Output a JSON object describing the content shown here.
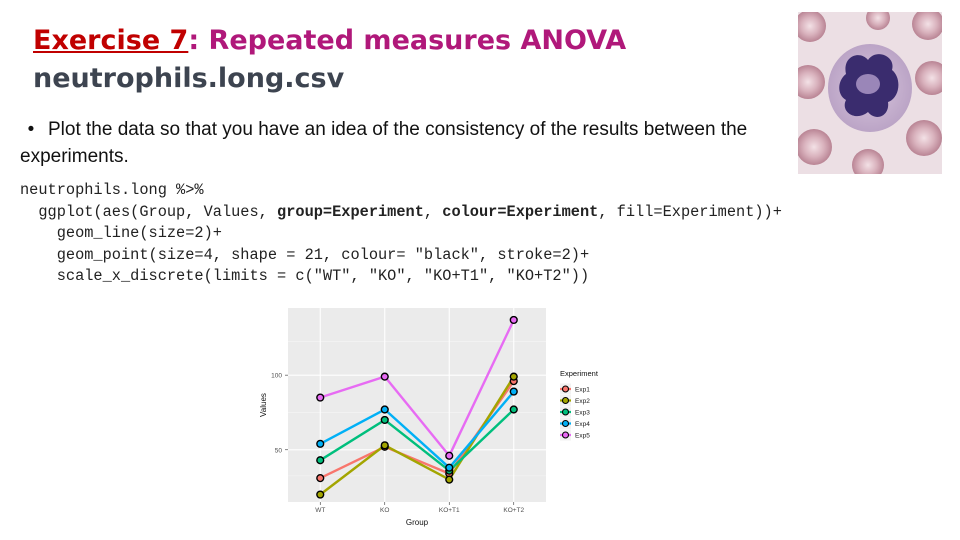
{
  "slide": {
    "title_exercise": "Exercise 7",
    "title_rest": ": Repeated measures ANOVA",
    "subtitle": "neutrophils.long.csv",
    "bullet_mark": "•",
    "bullet_text": "Plot the data so that you have an idea of the consistency of the results between the experiments."
  },
  "code": {
    "line1": "neutrophils.long %>%",
    "line2_a": "  ggplot(aes(Group, Values, ",
    "line2_b": "group=Experiment",
    "line2_c": ", ",
    "line2_d": "colour=Experiment",
    "line2_e": ", fill=Experiment))+",
    "line3": "    geom_line(size=2)+",
    "line4": "    geom_point(size=4, shape = 21, colour= \"black\", stroke=2)+",
    "line5": "    scale_x_discrete(limits = c(\"WT\", \"KO\", \"KO+T1\", \"KO+T2\"))"
  },
  "photo": {
    "icon": "neutrophil-micrograph-image"
  },
  "chart_data": {
    "type": "line",
    "categories": [
      "WT",
      "KO",
      "KO+T1",
      "KO+T2"
    ],
    "xlabel": "Group",
    "ylabel": "Values",
    "yticks": [
      50,
      100
    ],
    "ylim": [
      15,
      145
    ],
    "grid": true,
    "legend_title": "Experiment",
    "legend_position": "right",
    "series": [
      {
        "name": "Exp1",
        "color": "#f8766d",
        "values": [
          31,
          52,
          34,
          96
        ]
      },
      {
        "name": "Exp2",
        "color": "#a3a500",
        "values": [
          20,
          53,
          30,
          99
        ]
      },
      {
        "name": "Exp3",
        "color": "#00bf7d",
        "values": [
          43,
          70,
          36,
          77
        ]
      },
      {
        "name": "Exp4",
        "color": "#00b0f6",
        "values": [
          54,
          77,
          38,
          89
        ]
      },
      {
        "name": "Exp5",
        "color": "#e76bf3",
        "values": [
          85,
          99,
          46,
          137
        ]
      }
    ]
  }
}
